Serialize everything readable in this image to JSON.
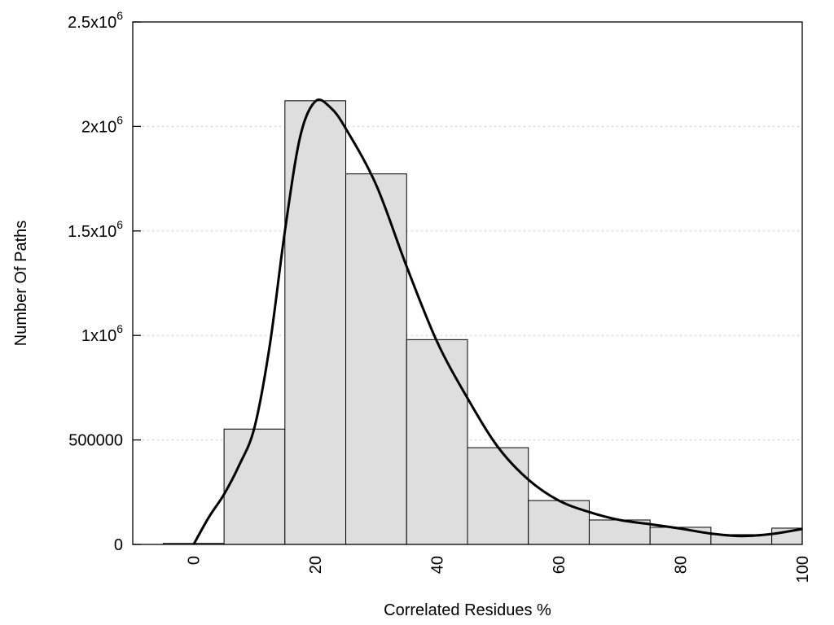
{
  "chart_data": {
    "type": "bar",
    "subtype": "histogram-with-density-curve",
    "title": "",
    "xlabel": "Correlated Residues %",
    "ylabel": "Number Of Paths",
    "xlim": [
      -10,
      100
    ],
    "ylim": [
      0,
      2500000
    ],
    "bin_width": 10,
    "x_ticks": [
      0,
      20,
      40,
      60,
      80,
      100
    ],
    "x_tick_labels": [
      "0",
      "20",
      "40",
      "60",
      "80",
      "100"
    ],
    "y_ticks": [
      0,
      500000,
      1000000,
      1500000,
      2000000,
      2500000
    ],
    "y_tick_labels": [
      {
        "base": "0",
        "exp": ""
      },
      {
        "base": "500000",
        "exp": ""
      },
      {
        "base": "1x10",
        "exp": "6"
      },
      {
        "base": "1.5x10",
        "exp": "6"
      },
      {
        "base": "2x10",
        "exp": "6"
      },
      {
        "base": "2.5x10",
        "exp": "6"
      }
    ],
    "grid": "horizontal dotted",
    "bars": {
      "centers": [
        0,
        10,
        20,
        30,
        40,
        50,
        60,
        70,
        80,
        90,
        100
      ],
      "values": [
        5000,
        552000,
        2123000,
        1773000,
        980000,
        463000,
        210000,
        117000,
        82000,
        47000,
        78000
      ],
      "fill": "#dedede",
      "stroke": "#000000"
    },
    "curve": {
      "x": [
        0,
        2.5,
        5,
        7.5,
        10,
        12.5,
        15,
        17.5,
        20,
        22.5,
        25,
        30,
        35,
        40,
        45,
        50,
        55,
        60,
        65,
        70,
        75,
        80,
        85,
        90,
        95,
        100
      ],
      "y": [
        0,
        130000,
        240000,
        380000,
        560000,
        950000,
        1500000,
        1950000,
        2120000,
        2090000,
        1990000,
        1720000,
        1330000,
        970000,
        700000,
        466000,
        310000,
        210000,
        155000,
        117000,
        97000,
        76000,
        52000,
        40000,
        50000,
        74000
      ],
      "color": "#000000"
    }
  }
}
